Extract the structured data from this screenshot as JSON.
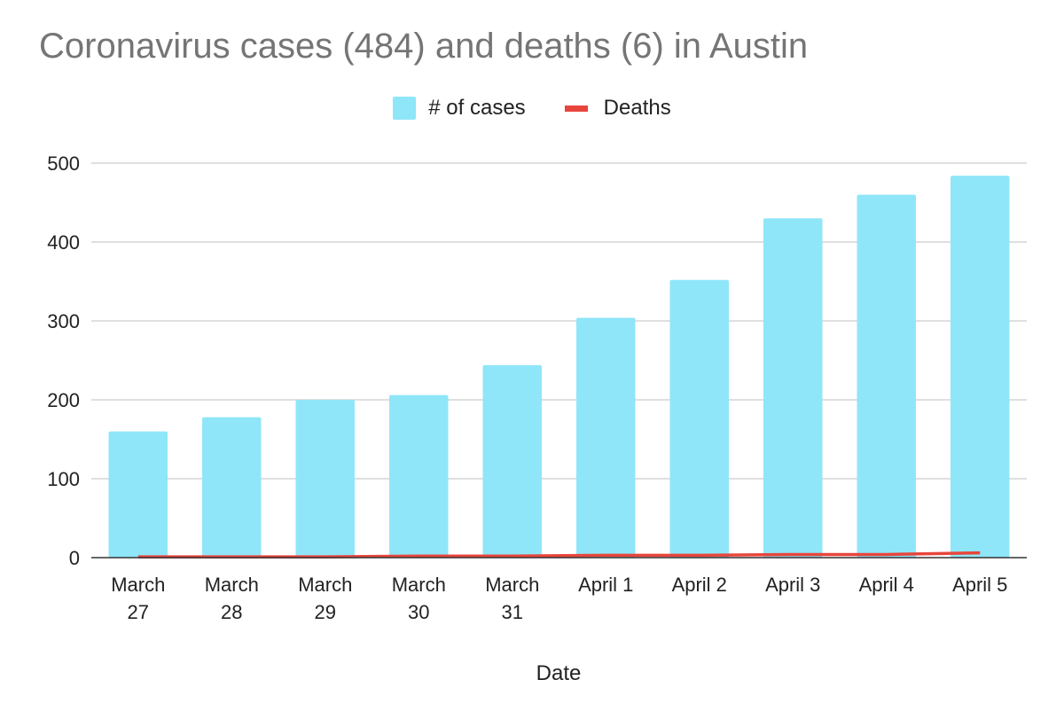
{
  "chart_data": {
    "type": "bar",
    "title": "Coronavirus cases (484) and deaths (6) in Austin",
    "xlabel": "Date",
    "ylabel": "",
    "ylim": [
      0,
      500
    ],
    "yticks": [
      0,
      100,
      200,
      300,
      400,
      500
    ],
    "grid": true,
    "legend_position": "top-center",
    "categories": [
      [
        "March",
        "27"
      ],
      [
        "March",
        "28"
      ],
      [
        "March",
        "29"
      ],
      [
        "March",
        "30"
      ],
      [
        "March",
        "31"
      ],
      [
        "April 1"
      ],
      [
        "April 2"
      ],
      [
        "April 3"
      ],
      [
        "April 4"
      ],
      [
        "April 5"
      ]
    ],
    "series": [
      {
        "name": "# of cases",
        "kind": "bar",
        "color": "#8fe6f8",
        "values": [
          160,
          178,
          200,
          206,
          244,
          304,
          352,
          430,
          460,
          484
        ]
      },
      {
        "name": "Deaths",
        "kind": "line",
        "color": "#e8453c",
        "values": [
          1,
          1,
          1,
          2,
          2,
          3,
          3,
          4,
          4,
          6
        ]
      }
    ]
  }
}
